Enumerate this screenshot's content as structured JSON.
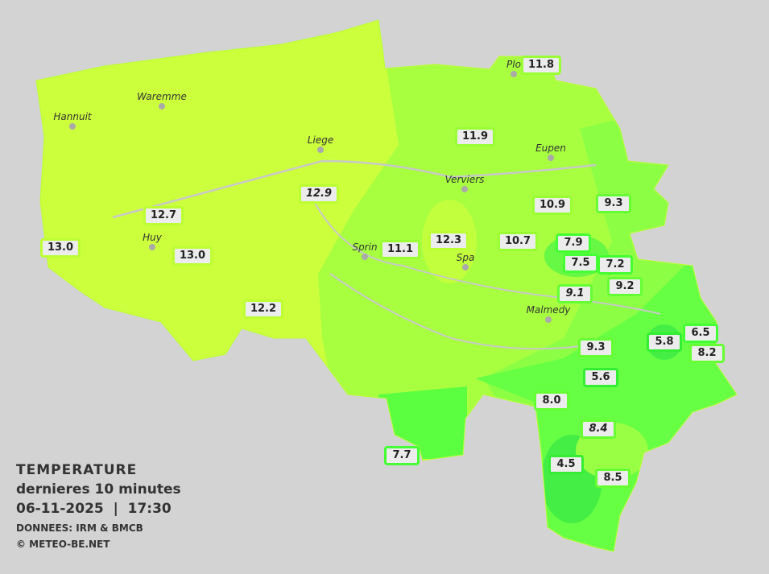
{
  "legend": {
    "title": "TEMPERATURE",
    "subtitle": "dernieres 10 minutes",
    "datetime": "06-11-2025  |  17:30",
    "source": "DONNEES: IRM & BMCB",
    "copyright": "© METEO-BE.NET"
  },
  "colors": {
    "background": "#d3d3d3",
    "warm": "#ccff3c",
    "mild": "#a8ff40",
    "cool": "#8cff44",
    "cold": "#5cff40",
    "coldest": "#44ee44"
  },
  "cities": [
    "Hannuit",
    "Waremme",
    "Liege",
    "Huy",
    "Sprin",
    "Spa",
    "Verviers",
    "Eupen",
    "Malmedy",
    "Plo"
  ],
  "stations": [
    {
      "value": "11.8"
    },
    {
      "value": "11.9"
    },
    {
      "value": "12.9",
      "italic": true
    },
    {
      "value": "12.7"
    },
    {
      "value": "13.0"
    },
    {
      "value": "13.0"
    },
    {
      "value": "12.2"
    },
    {
      "value": "11.1"
    },
    {
      "value": "12.3"
    },
    {
      "value": "10.7"
    },
    {
      "value": "10.9"
    },
    {
      "value": "9.3"
    },
    {
      "value": "7.9"
    },
    {
      "value": "7.5"
    },
    {
      "value": "7.2"
    },
    {
      "value": "9.2"
    },
    {
      "value": "9.1",
      "italic": true
    },
    {
      "value": "9.3"
    },
    {
      "value": "5.6"
    },
    {
      "value": "5.8"
    },
    {
      "value": "6.5"
    },
    {
      "value": "8.2"
    },
    {
      "value": "8.0"
    },
    {
      "value": "8.4",
      "italic": true
    },
    {
      "value": "7.7"
    },
    {
      "value": "4.5"
    },
    {
      "value": "8.5"
    }
  ]
}
